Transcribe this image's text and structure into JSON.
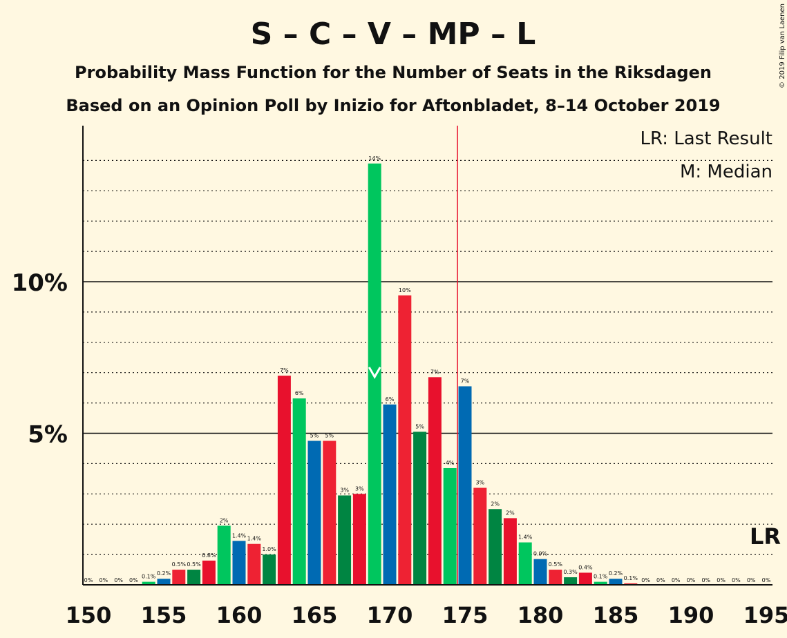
{
  "chart_data": {
    "type": "bar",
    "title": "S – C – V – MP – L",
    "subtitle1": "Probability Mass Function for the Number of Seats in the Riksdagen",
    "subtitle2": "Based on an Opinion Poll by Inizio for Aftonbladet, 8–14 October 2019",
    "copyright": "© 2019 Filip van Laenen",
    "legend": {
      "last_result": "LR: Last Result",
      "median": "M: Median"
    },
    "lr_marker_label": "LR",
    "xlim": [
      150,
      195
    ],
    "ylim": [
      0,
      14.9
    ],
    "x_ticks": [
      150,
      155,
      160,
      165,
      170,
      175,
      180,
      185,
      190,
      195
    ],
    "y_ticks": [
      {
        "value": 5,
        "label": "5%"
      },
      {
        "value": 10,
        "label": "10%"
      }
    ],
    "minor_gridlines": [
      1,
      2,
      3,
      4,
      6,
      7,
      8,
      9,
      11,
      12,
      13,
      14
    ],
    "last_result_seat": 175,
    "median_seat": 169,
    "colors": {
      "blue": "#006AB3",
      "red": "#EE2233",
      "darkgreen": "#008542",
      "crimson": "#E8112D",
      "green": "#00C65E",
      "lr_line": "#E8112D"
    },
    "color_cycle": [
      "blue",
      "red",
      "darkgreen",
      "crimson",
      "green"
    ],
    "bars": [
      {
        "seat": 150,
        "value": 0,
        "label": "0%"
      },
      {
        "seat": 151,
        "value": 0,
        "label": "0%"
      },
      {
        "seat": 152,
        "value": 0,
        "label": "0%"
      },
      {
        "seat": 153,
        "value": 0,
        "label": "0%"
      },
      {
        "seat": 154,
        "value": 0.1,
        "label": "0.1%"
      },
      {
        "seat": 155,
        "value": 0.2,
        "label": "0.2%"
      },
      {
        "seat": 156,
        "value": 0.5,
        "label": "0.5%"
      },
      {
        "seat": 157,
        "value": 0.5,
        "label": "0.5%"
      },
      {
        "seat": 158,
        "value": 0.8,
        "label": "0.8%"
      },
      {
        "seat": 159,
        "value": 1.95,
        "label": "2%"
      },
      {
        "seat": 160,
        "value": 1.45,
        "label": "1.4%"
      },
      {
        "seat": 161,
        "value": 1.35,
        "label": "1.4%"
      },
      {
        "seat": 162,
        "value": 1.0,
        "label": "1.0%"
      },
      {
        "seat": 163,
        "value": 6.9,
        "label": "7%"
      },
      {
        "seat": 164,
        "value": 6.15,
        "label": "6%"
      },
      {
        "seat": 165,
        "value": 4.75,
        "label": "5%"
      },
      {
        "seat": 166,
        "value": 4.75,
        "label": "5%"
      },
      {
        "seat": 167,
        "value": 2.95,
        "label": "3%"
      },
      {
        "seat": 168,
        "value": 3.0,
        "label": "3%"
      },
      {
        "seat": 169,
        "value": 13.9,
        "label": "14%"
      },
      {
        "seat": 170,
        "value": 5.95,
        "label": "6%"
      },
      {
        "seat": 171,
        "value": 9.55,
        "label": "10%"
      },
      {
        "seat": 172,
        "value": 5.05,
        "label": "5%"
      },
      {
        "seat": 173,
        "value": 6.85,
        "label": "7%"
      },
      {
        "seat": 174,
        "value": 3.85,
        "label": "4%"
      },
      {
        "seat": 175,
        "value": 6.55,
        "label": "7%"
      },
      {
        "seat": 176,
        "value": 3.2,
        "label": "3%"
      },
      {
        "seat": 177,
        "value": 2.5,
        "label": "2%"
      },
      {
        "seat": 178,
        "value": 2.2,
        "label": "2%"
      },
      {
        "seat": 179,
        "value": 1.4,
        "label": "1.4%"
      },
      {
        "seat": 180,
        "value": 0.85,
        "label": "0.9%"
      },
      {
        "seat": 181,
        "value": 0.5,
        "label": "0.5%"
      },
      {
        "seat": 182,
        "value": 0.25,
        "label": "0.3%"
      },
      {
        "seat": 183,
        "value": 0.4,
        "label": "0.4%"
      },
      {
        "seat": 184,
        "value": 0.1,
        "label": "0.1%"
      },
      {
        "seat": 185,
        "value": 0.2,
        "label": "0.2%"
      },
      {
        "seat": 186,
        "value": 0.05,
        "label": "0.1%"
      },
      {
        "seat": 187,
        "value": 0,
        "label": "0%"
      },
      {
        "seat": 188,
        "value": 0,
        "label": "0%"
      },
      {
        "seat": 189,
        "value": 0,
        "label": "0%"
      },
      {
        "seat": 190,
        "value": 0,
        "label": "0%"
      },
      {
        "seat": 191,
        "value": 0,
        "label": "0%"
      },
      {
        "seat": 192,
        "value": 0,
        "label": "0%"
      },
      {
        "seat": 193,
        "value": 0,
        "label": "0%"
      },
      {
        "seat": 194,
        "value": 0,
        "label": "0%"
      },
      {
        "seat": 195,
        "value": 0,
        "label": "0%"
      }
    ]
  }
}
